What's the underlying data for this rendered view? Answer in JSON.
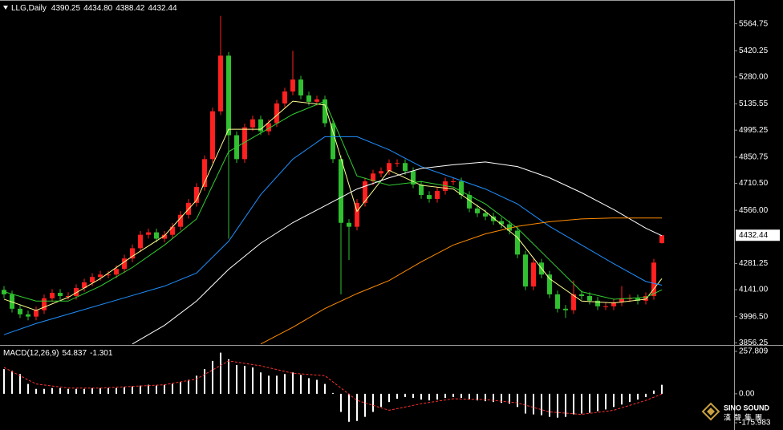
{
  "chart_data": [
    {
      "type": "candlestick",
      "header": {
        "symbol": "LLG,Daily",
        "ohlc": [
          "4390.25",
          "4434.80",
          "4388.42",
          "4432.44"
        ]
      },
      "up_color": "#ff2020",
      "down_color": "#30c030",
      "ylim": [
        3845,
        5692
      ],
      "yticks": [
        5564.75,
        5420.25,
        {
          "value": 5280,
          "label": "5280.00"
        },
        5135.55,
        4995.25,
        4850.75,
        {
          "value": 4710.5,
          "label": "4710.50"
        },
        {
          "value": 4566,
          "label": "4566.00"
        },
        4281.25,
        {
          "value": 4141,
          "label": "4141.00"
        },
        {
          "value": 3996.5,
          "label": "3996.50"
        },
        3856.25
      ],
      "open": [
        4140,
        4116,
        4039,
        4009,
        3997,
        4031,
        4095,
        4124,
        4107,
        4107,
        4150,
        4180,
        4209,
        4222,
        4222,
        4252,
        4308,
        4363,
        4435,
        4448,
        4414,
        4435,
        4478,
        4542,
        4606,
        4691,
        4840,
        5096,
        5394,
        4968,
        4840,
        5010,
        5053,
        4989,
        5032,
        5138,
        5202,
        5266,
        5181,
        5147,
        5160,
        5032,
        4840,
        4499,
        4478,
        4606,
        4721,
        4763,
        4776,
        4819,
        4819,
        4776,
        4704,
        4648,
        4627,
        4670,
        4721,
        4721,
        4648,
        4576,
        4550,
        4533,
        4508,
        4491,
        4457,
        4329,
        4158,
        4286,
        4222,
        4116,
        4039,
        4031,
        4116,
        4107,
        4082,
        4052,
        4052,
        4073,
        4095,
        4095,
        4082,
        4107,
        4390.25
      ],
      "high": [
        4160,
        4136,
        4059,
        4029,
        4051,
        4115,
        4144,
        4144,
        4127,
        4170,
        4200,
        4229,
        4242,
        4242,
        4272,
        4328,
        4383,
        4455,
        4468,
        4468,
        4455,
        4498,
        4562,
        4626,
        4711,
        4860,
        5116,
        5607,
        5414,
        4988,
        5030,
        5073,
        5073,
        5052,
        5158,
        5222,
        5420,
        5286,
        5201,
        5180,
        5180,
        5052,
        4860,
        4519,
        4626,
        4741,
        4783,
        4796,
        4839,
        4839,
        4839,
        4796,
        4724,
        4668,
        4690,
        4741,
        4741,
        4741,
        4668,
        4596,
        4570,
        4553,
        4528,
        4511,
        4477,
        4349,
        4306,
        4306,
        4242,
        4136,
        4059,
        4190,
        4136,
        4127,
        4102,
        4072,
        4093,
        4160,
        4115,
        4115,
        4127,
        4306,
        4434.8
      ],
      "low": [
        4096,
        4019,
        3989,
        3977,
        3977,
        4011,
        4075,
        4087,
        4087,
        4087,
        4130,
        4160,
        4189,
        4202,
        4202,
        4232,
        4288,
        4343,
        4415,
        4394,
        4394,
        4415,
        4458,
        4522,
        4586,
        4671,
        4820,
        5076,
        4414,
        4820,
        4820,
        4990,
        4969,
        4969,
        5012,
        5118,
        5182,
        5161,
        5127,
        5127,
        5012,
        4820,
        4116,
        4300,
        4458,
        4586,
        4701,
        4743,
        4756,
        4799,
        4756,
        4684,
        4628,
        4607,
        4607,
        4650,
        4701,
        4628,
        4556,
        4530,
        4513,
        4488,
        4471,
        4437,
        4309,
        4138,
        4138,
        4202,
        4096,
        4019,
        3990,
        4011,
        4087,
        4062,
        4032,
        4032,
        4032,
        4053,
        4075,
        4062,
        4062,
        4087,
        4388.42
      ],
      "close": [
        4116,
        4039,
        4009,
        3997,
        4031,
        4095,
        4124,
        4107,
        4107,
        4150,
        4180,
        4209,
        4222,
        4222,
        4252,
        4308,
        4363,
        4435,
        4448,
        4414,
        4435,
        4478,
        4542,
        4606,
        4691,
        4840,
        5096,
        5394,
        4968,
        4840,
        5010,
        5053,
        4989,
        5032,
        5138,
        5202,
        5266,
        5181,
        5147,
        5160,
        5032,
        4840,
        4499,
        4478,
        4606,
        4721,
        4763,
        4776,
        4819,
        4819,
        4776,
        4704,
        4648,
        4627,
        4670,
        4721,
        4721,
        4648,
        4576,
        4550,
        4533,
        4508,
        4491,
        4457,
        4329,
        4158,
        4286,
        4222,
        4116,
        4039,
        4031,
        4116,
        4107,
        4082,
        4052,
        4052,
        4073,
        4095,
        4095,
        4082,
        4107,
        4286,
        4432.44
      ],
      "series": [
        {
          "color": "#ffff90",
          "x": [
            0,
            4,
            8,
            12,
            16,
            20,
            24,
            28,
            32,
            36,
            40,
            44,
            48,
            52,
            56,
            60,
            64,
            68,
            72,
            76,
            80,
            82
          ],
          "values": [
            4090,
            4030,
            4100,
            4200,
            4320,
            4430,
            4620,
            5000,
            5000,
            5150,
            5130,
            4560,
            4780,
            4700,
            4680,
            4560,
            4420,
            4200,
            4080,
            4070,
            4090,
            4200
          ]
        },
        {
          "color": "#32cd32",
          "x": [
            0,
            4,
            8,
            12,
            16,
            20,
            24,
            28,
            32,
            36,
            40,
            44,
            48,
            52,
            56,
            60,
            64,
            68,
            72,
            76,
            80,
            82
          ],
          "values": [
            4130,
            4080,
            4080,
            4160,
            4260,
            4380,
            4520,
            4880,
            4980,
            5080,
            5150,
            4750,
            4700,
            4720,
            4690,
            4600,
            4470,
            4300,
            4130,
            4090,
            4100,
            4140
          ]
        },
        {
          "color": "#1e90ff",
          "x": [
            0,
            4,
            8,
            12,
            16,
            20,
            24,
            28,
            32,
            36,
            40,
            44,
            48,
            52,
            56,
            60,
            64,
            68,
            72,
            76,
            80,
            82
          ],
          "values": [
            3900,
            3960,
            4010,
            4060,
            4110,
            4160,
            4230,
            4400,
            4650,
            4840,
            4960,
            4960,
            4890,
            4800,
            4740,
            4680,
            4600,
            4480,
            4380,
            4280,
            4185,
            4165
          ]
        },
        {
          "color": "#ffffff",
          "x": [
            16,
            20,
            24,
            28,
            32,
            36,
            40,
            44,
            48,
            52,
            56,
            60,
            64,
            68,
            72,
            76,
            80,
            82
          ],
          "values": [
            3850,
            3950,
            4080,
            4250,
            4390,
            4500,
            4590,
            4680,
            4740,
            4790,
            4810,
            4825,
            4800,
            4740,
            4660,
            4570,
            4470,
            4430
          ]
        },
        {
          "color": "#ff8c00",
          "x": [
            32,
            36,
            40,
            44,
            48,
            52,
            56,
            60,
            64,
            68,
            72,
            76,
            80,
            82
          ],
          "values": [
            3850,
            3940,
            4040,
            4120,
            4190,
            4290,
            4380,
            4440,
            4480,
            4505,
            4520,
            4525,
            4525,
            4525
          ]
        }
      ]
    },
    {
      "type": "bar",
      "title": "MACD(12,26,9)",
      "color": "#ffffff",
      "ylim": [
        -219.85,
        287.05
      ],
      "yticks": [
        257.809,
        {
          "value": 0,
          "label": "0.00"
        },
        -175.983
      ],
      "values": [
        150,
        140,
        120,
        60,
        30,
        30,
        35,
        35,
        30,
        30,
        30,
        35,
        35,
        35,
        35,
        40,
        45,
        50,
        55,
        50,
        55,
        60,
        70,
        85,
        110,
        150,
        200,
        250,
        210,
        175,
        170,
        160,
        130,
        110,
        110,
        120,
        130,
        115,
        95,
        85,
        60,
        5,
        -110,
        -170,
        -165,
        -140,
        -110,
        -80,
        -50,
        -30,
        -20,
        -25,
        -35,
        -40,
        -35,
        -25,
        -20,
        -25,
        -35,
        -40,
        -45,
        -50,
        -55,
        -60,
        -80,
        -120,
        -125,
        -130,
        -140,
        -145,
        -140,
        -125,
        -120,
        -115,
        -105,
        -95,
        -80,
        -65,
        -50,
        -35,
        -20,
        20,
        54.837
      ],
      "signal": {
        "color": "#ff3030",
        "x": [
          0,
          4,
          8,
          12,
          16,
          20,
          24,
          28,
          32,
          36,
          40,
          44,
          48,
          52,
          56,
          60,
          64,
          68,
          72,
          76,
          80,
          82
        ],
        "values": [
          160,
          60,
          35,
          35,
          45,
          55,
          90,
          200,
          170,
          125,
          110,
          -40,
          -100,
          -60,
          -30,
          -35,
          -55,
          -110,
          -125,
          -100,
          -40,
          -1.301
        ]
      }
    }
  ],
  "logo": {
    "name": "SINO SOUND",
    "subtitle": "漢聲集團"
  }
}
